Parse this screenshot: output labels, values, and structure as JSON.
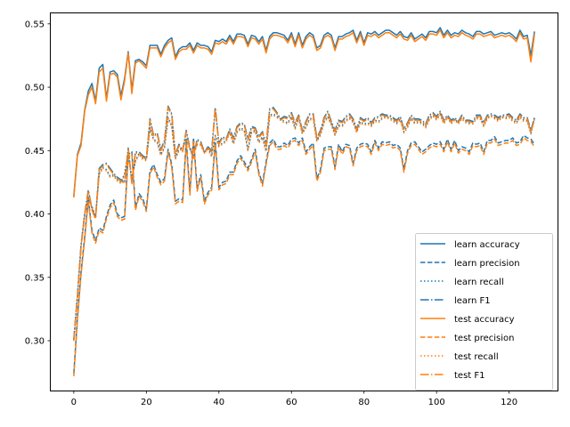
{
  "chart_data": {
    "type": "line",
    "title": "",
    "xlabel": "",
    "ylabel": "",
    "xlim": [
      -6.35,
      133.35
    ],
    "ylim": [
      0.2607,
      0.5583
    ],
    "xticks": [
      0,
      20,
      40,
      60,
      80,
      100,
      120
    ],
    "yticks": [
      0.3,
      0.35,
      0.4,
      0.45,
      0.5,
      0.55
    ],
    "ytick_labels": [
      "0.30",
      "0.35",
      "0.40",
      "0.45",
      "0.50",
      "0.55"
    ],
    "grid": false,
    "legend_position": "lower-right",
    "colors": {
      "learn": "#1f77b4",
      "test": "#ff7f0e"
    },
    "x_start": 0,
    "series": [
      {
        "name": "learn accuracy",
        "group": "learn",
        "style": "solid",
        "values": [
          0.414,
          0.447,
          0.456,
          0.482,
          0.497,
          0.503,
          0.489,
          0.515,
          0.518,
          0.491,
          0.512,
          0.513,
          0.51,
          0.493,
          0.507,
          0.528,
          0.498,
          0.521,
          0.522,
          0.52,
          0.517,
          0.533,
          0.533,
          0.533,
          0.526,
          0.533,
          0.537,
          0.539,
          0.524,
          0.53,
          0.532,
          0.532,
          0.535,
          0.529,
          0.535,
          0.533,
          0.533,
          0.532,
          0.528,
          0.537,
          0.536,
          0.538,
          0.536,
          0.541,
          0.536,
          0.542,
          0.542,
          0.541,
          0.534,
          0.541,
          0.54,
          0.536,
          0.54,
          0.529,
          0.54,
          0.543,
          0.543,
          0.542,
          0.541,
          0.537,
          0.543,
          0.534,
          0.543,
          0.533,
          0.54,
          0.543,
          0.541,
          0.531,
          0.533,
          0.541,
          0.543,
          0.541,
          0.531,
          0.54,
          0.54,
          0.542,
          0.543,
          0.545,
          0.537,
          0.544,
          0.535,
          0.543,
          0.542,
          0.544,
          0.541,
          0.543,
          0.545,
          0.545,
          0.543,
          0.541,
          0.544,
          0.54,
          0.539,
          0.543,
          0.538,
          0.54,
          0.542,
          0.539,
          0.544,
          0.544,
          0.543,
          0.547,
          0.541,
          0.545,
          0.541,
          0.543,
          0.542,
          0.545,
          0.543,
          0.542,
          0.54,
          0.544,
          0.544,
          0.542,
          0.543,
          0.544,
          0.541,
          0.542,
          0.543,
          0.542,
          0.543,
          0.541,
          0.538,
          0.545,
          0.54,
          0.541,
          0.525,
          0.544
        ]
      },
      {
        "name": "learn precision",
        "group": "learn",
        "style": "dashed",
        "values": [
          0.274,
          0.318,
          0.354,
          0.382,
          0.412,
          0.387,
          0.379,
          0.389,
          0.387,
          0.398,
          0.407,
          0.411,
          0.4,
          0.397,
          0.398,
          0.447,
          0.449,
          0.405,
          0.416,
          0.412,
          0.404,
          0.434,
          0.439,
          0.431,
          0.425,
          0.428,
          0.451,
          0.439,
          0.41,
          0.412,
          0.411,
          0.458,
          0.417,
          0.46,
          0.42,
          0.431,
          0.41,
          0.417,
          0.421,
          0.457,
          0.421,
          0.425,
          0.426,
          0.433,
          0.433,
          0.442,
          0.446,
          0.441,
          0.436,
          0.443,
          0.451,
          0.433,
          0.424,
          0.441,
          0.456,
          0.459,
          0.453,
          0.453,
          0.456,
          0.454,
          0.459,
          0.46,
          0.456,
          0.46,
          0.449,
          0.453,
          0.456,
          0.428,
          0.435,
          0.452,
          0.453,
          0.453,
          0.437,
          0.455,
          0.449,
          0.455,
          0.454,
          0.44,
          0.452,
          0.455,
          0.456,
          0.455,
          0.449,
          0.458,
          0.452,
          0.457,
          0.456,
          0.457,
          0.454,
          0.455,
          0.452,
          0.435,
          0.45,
          0.456,
          0.457,
          0.453,
          0.449,
          0.451,
          0.454,
          0.456,
          0.455,
          0.457,
          0.451,
          0.459,
          0.451,
          0.458,
          0.45,
          0.453,
          0.452,
          0.449,
          0.456,
          0.455,
          0.456,
          0.449,
          0.458,
          0.458,
          0.461,
          0.456,
          0.457,
          0.458,
          0.458,
          0.46,
          0.456,
          0.457,
          0.462,
          0.46,
          0.459,
          0.455
        ]
      },
      {
        "name": "learn recall",
        "group": "learn",
        "style": "dotted",
        "values": [
          0.301,
          0.336,
          0.376,
          0.4,
          0.413,
          0.406,
          0.398,
          0.432,
          0.437,
          0.435,
          0.43,
          0.431,
          0.427,
          0.425,
          0.432,
          0.448,
          0.428,
          0.442,
          0.448,
          0.444,
          0.443,
          0.468,
          0.459,
          0.457,
          0.447,
          0.453,
          0.476,
          0.47,
          0.444,
          0.451,
          0.452,
          0.46,
          0.452,
          0.448,
          0.455,
          0.455,
          0.449,
          0.452,
          0.446,
          0.462,
          0.454,
          0.456,
          0.458,
          0.465,
          0.456,
          0.465,
          0.468,
          0.466,
          0.451,
          0.465,
          0.466,
          0.457,
          0.461,
          0.45,
          0.478,
          0.479,
          0.477,
          0.475,
          0.473,
          0.472,
          0.477,
          0.468,
          0.476,
          0.464,
          0.469,
          0.475,
          0.476,
          0.458,
          0.463,
          0.473,
          0.477,
          0.471,
          0.463,
          0.47,
          0.47,
          0.474,
          0.476,
          0.473,
          0.465,
          0.473,
          0.471,
          0.472,
          0.47,
          0.474,
          0.473,
          0.476,
          0.477,
          0.476,
          0.474,
          0.472,
          0.475,
          0.465,
          0.469,
          0.476,
          0.472,
          0.473,
          0.472,
          0.469,
          0.475,
          0.478,
          0.475,
          0.479,
          0.472,
          0.477,
          0.472,
          0.475,
          0.472,
          0.476,
          0.473,
          0.472,
          0.472,
          0.476,
          0.476,
          0.47,
          0.476,
          0.478,
          0.476,
          0.474,
          0.477,
          0.476,
          0.477,
          0.474,
          0.472,
          0.477,
          0.474,
          0.474,
          0.464,
          0.476
        ]
      },
      {
        "name": "learn F1",
        "group": "learn",
        "style": "dashdot",
        "values": [
          0.301,
          0.335,
          0.375,
          0.4,
          0.419,
          0.404,
          0.397,
          0.436,
          0.439,
          0.44,
          0.436,
          0.432,
          0.429,
          0.427,
          0.425,
          0.452,
          0.425,
          0.449,
          0.449,
          0.446,
          0.444,
          0.475,
          0.462,
          0.464,
          0.451,
          0.458,
          0.485,
          0.479,
          0.447,
          0.455,
          0.45,
          0.466,
          0.452,
          0.445,
          0.459,
          0.457,
          0.449,
          0.453,
          0.45,
          0.484,
          0.456,
          0.461,
          0.459,
          0.467,
          0.46,
          0.469,
          0.472,
          0.471,
          0.459,
          0.469,
          0.468,
          0.461,
          0.465,
          0.455,
          0.483,
          0.484,
          0.48,
          0.475,
          0.477,
          0.476,
          0.48,
          0.472,
          0.478,
          0.466,
          0.473,
          0.479,
          0.479,
          0.46,
          0.466,
          0.476,
          0.481,
          0.473,
          0.466,
          0.474,
          0.473,
          0.477,
          0.479,
          0.475,
          0.467,
          0.476,
          0.474,
          0.476,
          0.472,
          0.476,
          0.477,
          0.479,
          0.478,
          0.478,
          0.476,
          0.474,
          0.477,
          0.467,
          0.472,
          0.478,
          0.475,
          0.475,
          0.474,
          0.471,
          0.478,
          0.48,
          0.477,
          0.481,
          0.474,
          0.478,
          0.474,
          0.476,
          0.473,
          0.478,
          0.474,
          0.474,
          0.473,
          0.478,
          0.478,
          0.472,
          0.478,
          0.479,
          0.478,
          0.476,
          0.478,
          0.478,
          0.479,
          0.476,
          0.474,
          0.479,
          0.476,
          0.476,
          0.466,
          0.476
        ]
      },
      {
        "name": "test accuracy",
        "group": "test",
        "style": "solid",
        "values": [
          0.413,
          0.446,
          0.454,
          0.481,
          0.494,
          0.5,
          0.487,
          0.512,
          0.515,
          0.489,
          0.51,
          0.511,
          0.508,
          0.49,
          0.505,
          0.527,
          0.495,
          0.519,
          0.521,
          0.518,
          0.515,
          0.531,
          0.531,
          0.531,
          0.524,
          0.531,
          0.535,
          0.537,
          0.522,
          0.528,
          0.53,
          0.53,
          0.533,
          0.527,
          0.533,
          0.531,
          0.531,
          0.53,
          0.526,
          0.535,
          0.534,
          0.536,
          0.534,
          0.539,
          0.534,
          0.54,
          0.54,
          0.539,
          0.532,
          0.539,
          0.538,
          0.534,
          0.538,
          0.527,
          0.538,
          0.541,
          0.541,
          0.54,
          0.539,
          0.535,
          0.541,
          0.532,
          0.541,
          0.531,
          0.538,
          0.541,
          0.539,
          0.529,
          0.531,
          0.539,
          0.541,
          0.539,
          0.529,
          0.538,
          0.538,
          0.54,
          0.541,
          0.543,
          0.535,
          0.542,
          0.533,
          0.541,
          0.54,
          0.542,
          0.539,
          0.541,
          0.543,
          0.543,
          0.541,
          0.539,
          0.542,
          0.538,
          0.537,
          0.541,
          0.536,
          0.538,
          0.54,
          0.537,
          0.542,
          0.542,
          0.541,
          0.545,
          0.539,
          0.543,
          0.539,
          0.541,
          0.54,
          0.543,
          0.541,
          0.54,
          0.538,
          0.542,
          0.542,
          0.54,
          0.541,
          0.542,
          0.539,
          0.54,
          0.541,
          0.54,
          0.541,
          0.539,
          0.536,
          0.543,
          0.538,
          0.539,
          0.52,
          0.542
        ]
      },
      {
        "name": "test precision",
        "group": "test",
        "style": "dashed",
        "values": [
          0.272,
          0.316,
          0.352,
          0.38,
          0.41,
          0.385,
          0.377,
          0.387,
          0.385,
          0.396,
          0.405,
          0.409,
          0.398,
          0.395,
          0.396,
          0.445,
          0.447,
          0.403,
          0.414,
          0.41,
          0.402,
          0.432,
          0.437,
          0.429,
          0.423,
          0.426,
          0.449,
          0.437,
          0.408,
          0.41,
          0.409,
          0.456,
          0.415,
          0.458,
          0.418,
          0.429,
          0.408,
          0.415,
          0.419,
          0.455,
          0.419,
          0.423,
          0.424,
          0.431,
          0.431,
          0.44,
          0.444,
          0.439,
          0.434,
          0.441,
          0.449,
          0.431,
          0.422,
          0.439,
          0.454,
          0.457,
          0.451,
          0.451,
          0.454,
          0.452,
          0.457,
          0.458,
          0.454,
          0.458,
          0.447,
          0.451,
          0.454,
          0.426,
          0.433,
          0.45,
          0.451,
          0.451,
          0.435,
          0.453,
          0.447,
          0.453,
          0.452,
          0.438,
          0.45,
          0.453,
          0.454,
          0.453,
          0.447,
          0.456,
          0.45,
          0.455,
          0.454,
          0.455,
          0.452,
          0.453,
          0.45,
          0.433,
          0.448,
          0.454,
          0.455,
          0.451,
          0.447,
          0.449,
          0.452,
          0.454,
          0.453,
          0.455,
          0.449,
          0.457,
          0.449,
          0.456,
          0.448,
          0.451,
          0.45,
          0.447,
          0.454,
          0.453,
          0.454,
          0.447,
          0.456,
          0.456,
          0.459,
          0.454,
          0.455,
          0.456,
          0.456,
          0.458,
          0.454,
          0.455,
          0.46,
          0.458,
          0.457,
          0.453
        ]
      },
      {
        "name": "test recall",
        "group": "test",
        "style": "dotted",
        "values": [
          0.3,
          0.335,
          0.375,
          0.399,
          0.412,
          0.405,
          0.397,
          0.431,
          0.436,
          0.434,
          0.429,
          0.43,
          0.426,
          0.424,
          0.431,
          0.447,
          0.427,
          0.441,
          0.447,
          0.443,
          0.442,
          0.467,
          0.458,
          0.456,
          0.446,
          0.452,
          0.475,
          0.469,
          0.443,
          0.45,
          0.451,
          0.459,
          0.451,
          0.447,
          0.454,
          0.454,
          0.448,
          0.451,
          0.445,
          0.461,
          0.453,
          0.455,
          0.457,
          0.464,
          0.455,
          0.464,
          0.467,
          0.465,
          0.45,
          0.464,
          0.465,
          0.456,
          0.46,
          0.449,
          0.477,
          0.478,
          0.476,
          0.474,
          0.472,
          0.471,
          0.476,
          0.467,
          0.475,
          0.463,
          0.468,
          0.474,
          0.475,
          0.457,
          0.462,
          0.472,
          0.476,
          0.47,
          0.462,
          0.469,
          0.469,
          0.473,
          0.475,
          0.472,
          0.464,
          0.472,
          0.47,
          0.471,
          0.469,
          0.473,
          0.472,
          0.475,
          0.476,
          0.475,
          0.473,
          0.471,
          0.474,
          0.464,
          0.468,
          0.475,
          0.471,
          0.472,
          0.471,
          0.468,
          0.474,
          0.477,
          0.474,
          0.478,
          0.471,
          0.476,
          0.471,
          0.474,
          0.471,
          0.475,
          0.472,
          0.471,
          0.471,
          0.475,
          0.475,
          0.469,
          0.475,
          0.477,
          0.475,
          0.473,
          0.476,
          0.475,
          0.476,
          0.473,
          0.471,
          0.476,
          0.473,
          0.473,
          0.463,
          0.475
        ]
      },
      {
        "name": "test F1",
        "group": "test",
        "style": "dashdot",
        "values": [
          0.3,
          0.334,
          0.374,
          0.399,
          0.418,
          0.403,
          0.396,
          0.435,
          0.438,
          0.439,
          0.435,
          0.431,
          0.428,
          0.426,
          0.424,
          0.451,
          0.424,
          0.448,
          0.448,
          0.445,
          0.443,
          0.474,
          0.461,
          0.463,
          0.45,
          0.457,
          0.484,
          0.478,
          0.446,
          0.454,
          0.449,
          0.465,
          0.451,
          0.444,
          0.458,
          0.456,
          0.448,
          0.452,
          0.449,
          0.483,
          0.455,
          0.46,
          0.458,
          0.466,
          0.459,
          0.468,
          0.471,
          0.47,
          0.458,
          0.468,
          0.467,
          0.46,
          0.464,
          0.454,
          0.482,
          0.483,
          0.479,
          0.474,
          0.476,
          0.475,
          0.479,
          0.471,
          0.477,
          0.465,
          0.472,
          0.478,
          0.478,
          0.459,
          0.465,
          0.475,
          0.48,
          0.472,
          0.465,
          0.473,
          0.472,
          0.476,
          0.478,
          0.474,
          0.466,
          0.475,
          0.473,
          0.475,
          0.471,
          0.475,
          0.476,
          0.478,
          0.477,
          0.477,
          0.475,
          0.473,
          0.476,
          0.466,
          0.471,
          0.477,
          0.474,
          0.474,
          0.473,
          0.47,
          0.477,
          0.479,
          0.476,
          0.48,
          0.473,
          0.477,
          0.473,
          0.475,
          0.472,
          0.477,
          0.473,
          0.473,
          0.472,
          0.477,
          0.477,
          0.471,
          0.477,
          0.478,
          0.477,
          0.475,
          0.477,
          0.477,
          0.478,
          0.475,
          0.473,
          0.478,
          0.475,
          0.475,
          0.465,
          0.475
        ]
      }
    ]
  }
}
